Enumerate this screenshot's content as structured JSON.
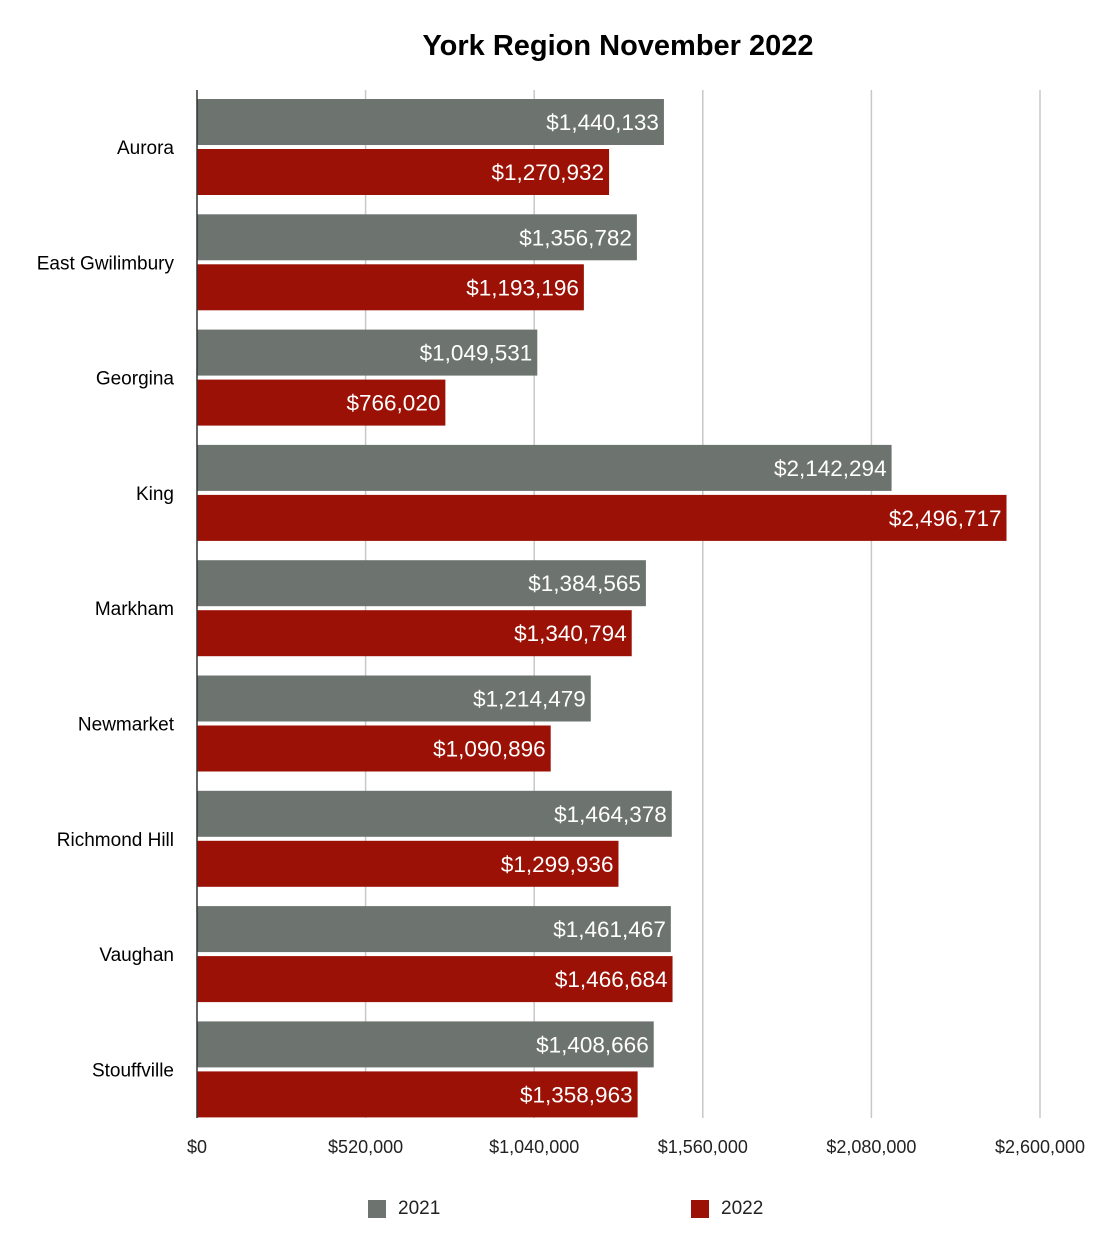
{
  "chart_data": {
    "type": "bar",
    "orientation": "horizontal",
    "title": "York Region November 2022",
    "categories": [
      "Aurora",
      "East Gwilimbury",
      "Georgina",
      "King",
      "Markham",
      "Newmarket",
      "Richmond Hill",
      "Vaughan",
      "Stouffville"
    ],
    "series": [
      {
        "name": "2021",
        "color": "#6d7470",
        "values": [
          1440133,
          1356782,
          1049531,
          2142294,
          1384565,
          1214479,
          1464378,
          1461467,
          1408666
        ],
        "labels": [
          "$1,440,133",
          "$1,356,782",
          "$1,049,531",
          "$2,142,294",
          "$1,384,565",
          "$1,214,479",
          "$1,464,378",
          "$1,461,467",
          "$1,408,666"
        ]
      },
      {
        "name": "2022",
        "color": "#9b1106",
        "values": [
          1270932,
          1193196,
          766020,
          2496717,
          1340794,
          1090896,
          1299936,
          1466684,
          1358963
        ],
        "labels": [
          "$1,270,932",
          "$1,193,196",
          "$766,020",
          "$2,496,717",
          "$1,340,794",
          "$1,090,896",
          "$1,299,936",
          "$1,466,684",
          "$1,358,963"
        ]
      }
    ],
    "x_ticks": [
      0,
      520000,
      1040000,
      1560000,
      2080000,
      2600000
    ],
    "x_tick_labels": [
      "$0",
      "$520,000",
      "$1,040,000",
      "$1,560,000",
      "$2,080,000",
      "$2,600,000"
    ],
    "xlim": [
      0,
      2600000
    ],
    "grid": true,
    "legend_position": "bottom"
  }
}
